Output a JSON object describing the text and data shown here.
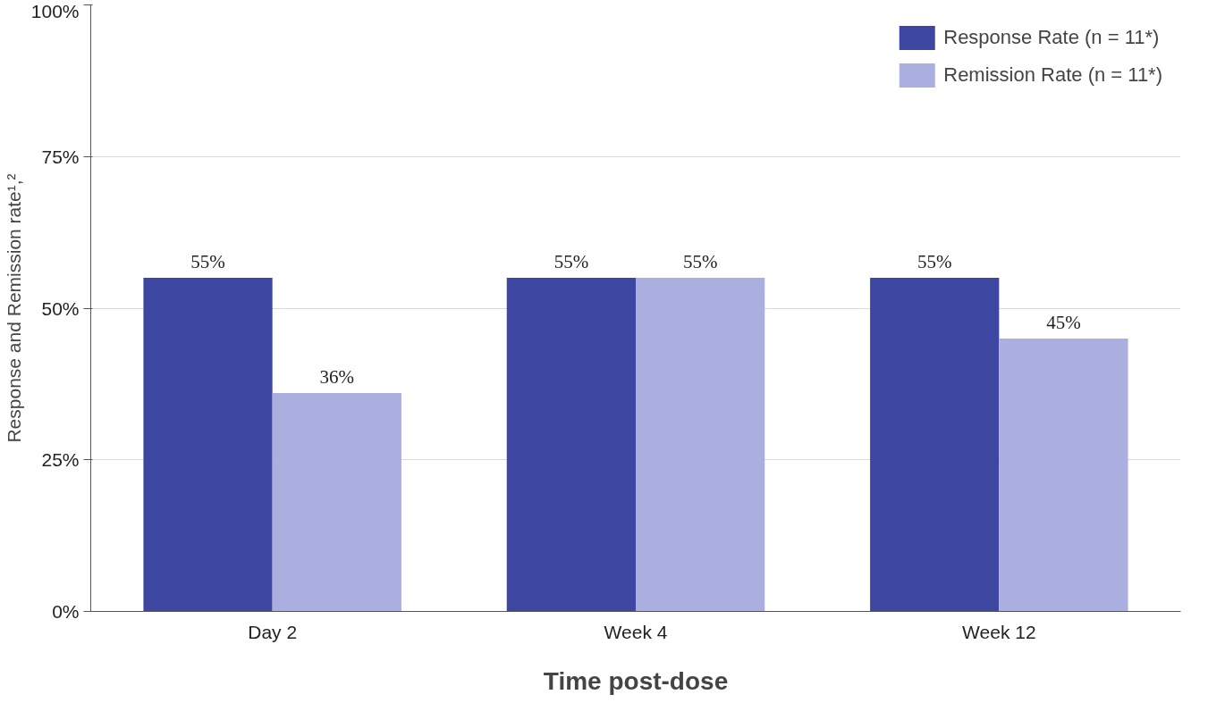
{
  "chart_data": {
    "type": "bar",
    "xlabel": "Time post-dose",
    "ylabel": "Response and Remission rate¹,²",
    "categories": [
      "Day 2",
      "Week 4",
      "Week 12"
    ],
    "series": [
      {
        "name": "Response Rate (n = 11*)",
        "color": "#3d46a0",
        "values": [
          55,
          55,
          55
        ],
        "value_labels": [
          "55%",
          "55%",
          "55%"
        ]
      },
      {
        "name": "Remission Rate (n = 11*)",
        "color": "#abafe0",
        "values": [
          36,
          55,
          45
        ],
        "value_labels": [
          "36%",
          "55%",
          "45%"
        ]
      }
    ],
    "ylim": [
      0,
      100
    ],
    "yticks": [
      {
        "value": 0,
        "label": "0%"
      },
      {
        "value": 25,
        "label": "25%"
      },
      {
        "value": 50,
        "label": "50%"
      },
      {
        "value": 75,
        "label": "75%"
      },
      {
        "value": 100,
        "label": "100%"
      }
    ],
    "grid": "y",
    "legend": "top right"
  }
}
